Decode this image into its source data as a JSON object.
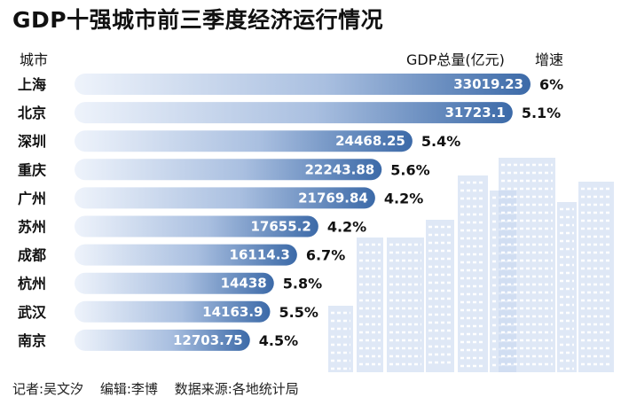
{
  "title": "GDP十强城市前三季度经济运行情况",
  "headers": {
    "city": "城市",
    "gdp": "GDP总量(亿元)",
    "growth": "增速"
  },
  "footer": {
    "reporter": "记者:吴文汐",
    "editor": "编辑:李博",
    "source": "数据来源:各地统计局"
  },
  "colors": {
    "bar_dark": "#3c6aa8",
    "bar_light": "#eef3fb",
    "building": "#c5d6ee"
  },
  "chart_data": {
    "type": "bar",
    "orientation": "horizontal",
    "title": "GDP十强城市前三季度经济运行情况",
    "xlabel": "GDP总量(亿元)",
    "ylabel": "城市",
    "xlim": [
      0,
      33019.23
    ],
    "categories": [
      "上海",
      "北京",
      "深圳",
      "重庆",
      "广州",
      "苏州",
      "成都",
      "杭州",
      "武汉",
      "南京"
    ],
    "series": [
      {
        "name": "GDP总量(亿元)",
        "values": [
          33019.23,
          31723.1,
          24468.25,
          22243.88,
          21769.84,
          17655.2,
          16114.3,
          14438,
          14163.9,
          12703.75
        ],
        "labels": [
          "33019.23",
          "31723.1",
          "24468.25",
          "22243.88",
          "21769.84",
          "17655.2",
          "16114.3",
          "14438",
          "14163.9",
          "12703.75"
        ]
      },
      {
        "name": "增速",
        "values": [
          "6%",
          "5.1%",
          "5.4%",
          "5.6%",
          "4.2%",
          "4.2%",
          "6.7%",
          "5.8%",
          "5.5%",
          "4.5%"
        ]
      }
    ]
  }
}
